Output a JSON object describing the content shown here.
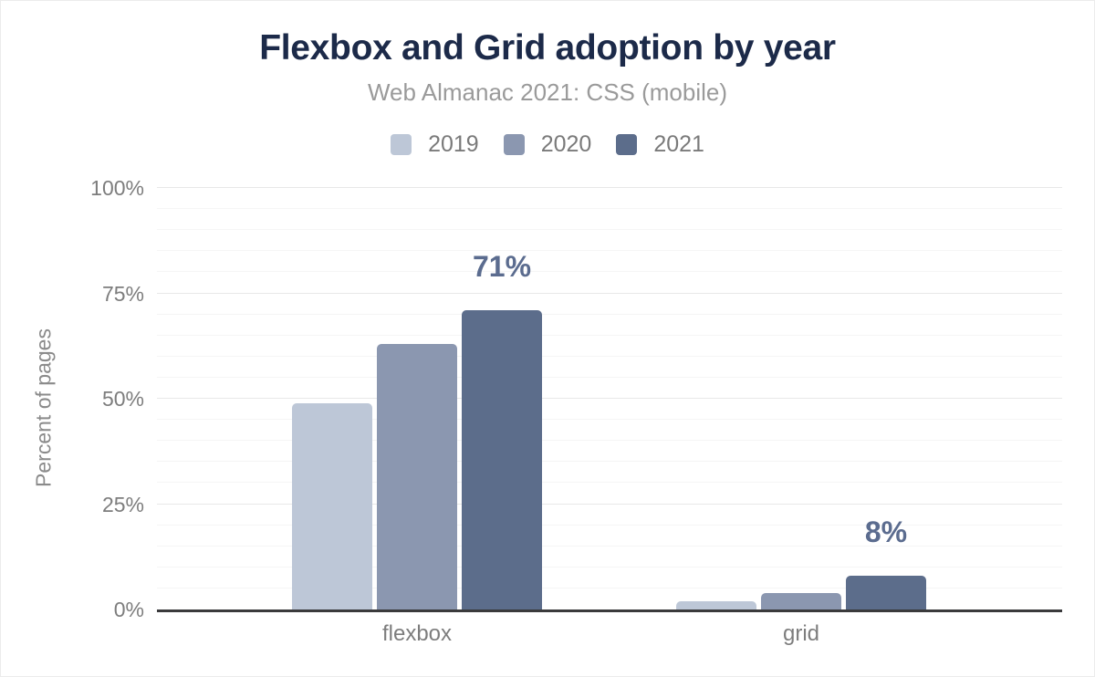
{
  "chart_data": {
    "type": "bar",
    "title": "Flexbox and Grid adoption by year",
    "subtitle": "Web Almanac 2021: CSS (mobile)",
    "categories": [
      "flexbox",
      "grid"
    ],
    "series": [
      {
        "name": "2019",
        "color": "#bdc7d7",
        "values": [
          49,
          2
        ]
      },
      {
        "name": "2020",
        "color": "#8b97b0",
        "values": [
          63,
          4
        ]
      },
      {
        "name": "2021",
        "color": "#5c6d8b",
        "values": [
          71,
          8
        ]
      }
    ],
    "annotations": [
      {
        "category": "flexbox",
        "series": "2021",
        "text": "71%"
      },
      {
        "category": "grid",
        "series": "2021",
        "text": "8%"
      }
    ],
    "xlabel": "",
    "ylabel": "Percent of pages",
    "ylim": [
      0,
      100
    ],
    "yticks": [
      0,
      25,
      50,
      75,
      100
    ],
    "ytick_labels": [
      "0%",
      "25%",
      "50%",
      "75%",
      "100%"
    ],
    "grid": "horizontal minor lines every 5%, major lines every 25%",
    "legend_position": "top"
  },
  "theme": {
    "title_color": "#1c2a49",
    "subtitle_color": "#9a9a9a",
    "tick_label_color": "#7d7d7d",
    "axis_title_color": "#8a8a8a",
    "data_label_color": "#5b6c8f",
    "axis_line_color": "#3a3a3c",
    "gridline_major_color": "#e8e8e8",
    "gridline_minor_color": "#f5f5f5",
    "background_color": "#ffffff"
  }
}
